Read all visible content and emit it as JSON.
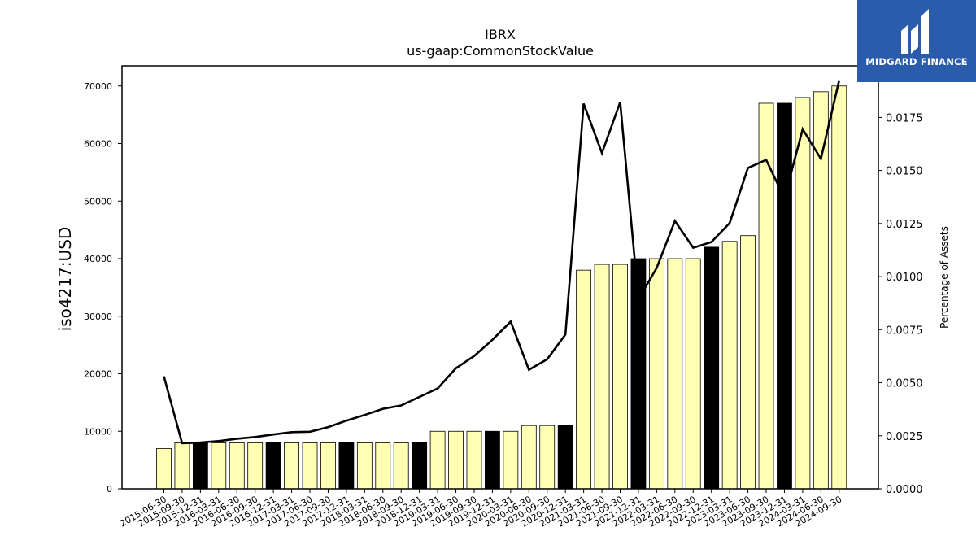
{
  "chart_data": {
    "type": "bar",
    "title": "IBRX",
    "subtitle": "us-gaap:CommonStockValue",
    "ylabel": "iso4217:USD",
    "y2label": "Percentage of Assets",
    "ylim": [
      0,
      73500
    ],
    "y2lim": [
      0,
      0.01993
    ],
    "yticks": [
      0,
      10000,
      20000,
      30000,
      40000,
      50000,
      60000,
      70000
    ],
    "y2ticks": [
      "0.0000",
      "0.0025",
      "0.0050",
      "0.0075",
      "0.0100",
      "0.0125",
      "0.0150",
      "0.0175"
    ],
    "colors": {
      "bar": "#ffffb3",
      "bar_highlight": "#000000",
      "edge": "#000000",
      "line": "#000000"
    },
    "categories": [
      "2015-06-30",
      "2015-09-30",
      "2015-12-31",
      "2016-03-31",
      "2016-06-30",
      "2016-09-30",
      "2016-12-31",
      "2017-03-31",
      "2017-06-30",
      "2017-09-30",
      "2017-12-31",
      "2018-03-31",
      "2018-06-30",
      "2018-09-30",
      "2018-12-31",
      "2019-03-31",
      "2019-06-30",
      "2019-09-30",
      "2019-12-31",
      "2020-03-31",
      "2020-06-30",
      "2020-09-30",
      "2020-12-31",
      "2021-03-31",
      "2021-06-30",
      "2021-09-30",
      "2021-12-31",
      "2022-03-31",
      "2022-06-30",
      "2022-09-30",
      "2022-12-31",
      "2023-03-31",
      "2023-06-30",
      "2023-09-30",
      "2023-12-31",
      "2024-03-31",
      "2024-06-30",
      "2024-09-30"
    ],
    "values": [
      7000,
      8000,
      8000,
      8000,
      8000,
      8000,
      8000,
      8000,
      8000,
      8000,
      8000,
      8000,
      8000,
      8000,
      8000,
      10000,
      10000,
      10000,
      10000,
      10000,
      11000,
      11000,
      11000,
      38000,
      39000,
      39000,
      40000,
      40000,
      40000,
      40000,
      42000,
      43000,
      44000,
      67000,
      67000,
      68000,
      69000,
      70000
    ],
    "highlight": [
      false,
      false,
      true,
      false,
      false,
      false,
      true,
      false,
      false,
      false,
      true,
      false,
      false,
      false,
      true,
      false,
      false,
      false,
      true,
      false,
      false,
      false,
      true,
      false,
      false,
      false,
      true,
      false,
      false,
      false,
      true,
      false,
      false,
      false,
      true,
      false,
      false,
      false
    ],
    "pct_assets": [
      0.0053,
      0.00215,
      0.00218,
      0.00225,
      0.00236,
      0.00244,
      0.00256,
      0.00267,
      0.00269,
      0.00291,
      0.00321,
      0.00348,
      0.00377,
      0.00393,
      0.00433,
      0.00473,
      0.00568,
      0.00626,
      0.00702,
      0.00788,
      0.00561,
      0.0061,
      0.00727,
      0.01815,
      0.01582,
      0.01822,
      0.00893,
      0.01041,
      0.01262,
      0.01136,
      0.01163,
      0.01252,
      0.01512,
      0.0155,
      0.0137,
      0.01695,
      0.01555,
      0.01925
    ]
  },
  "logo": {
    "text": "MIDGARD FINANCE",
    "icon": "midgard-logo-icon"
  }
}
